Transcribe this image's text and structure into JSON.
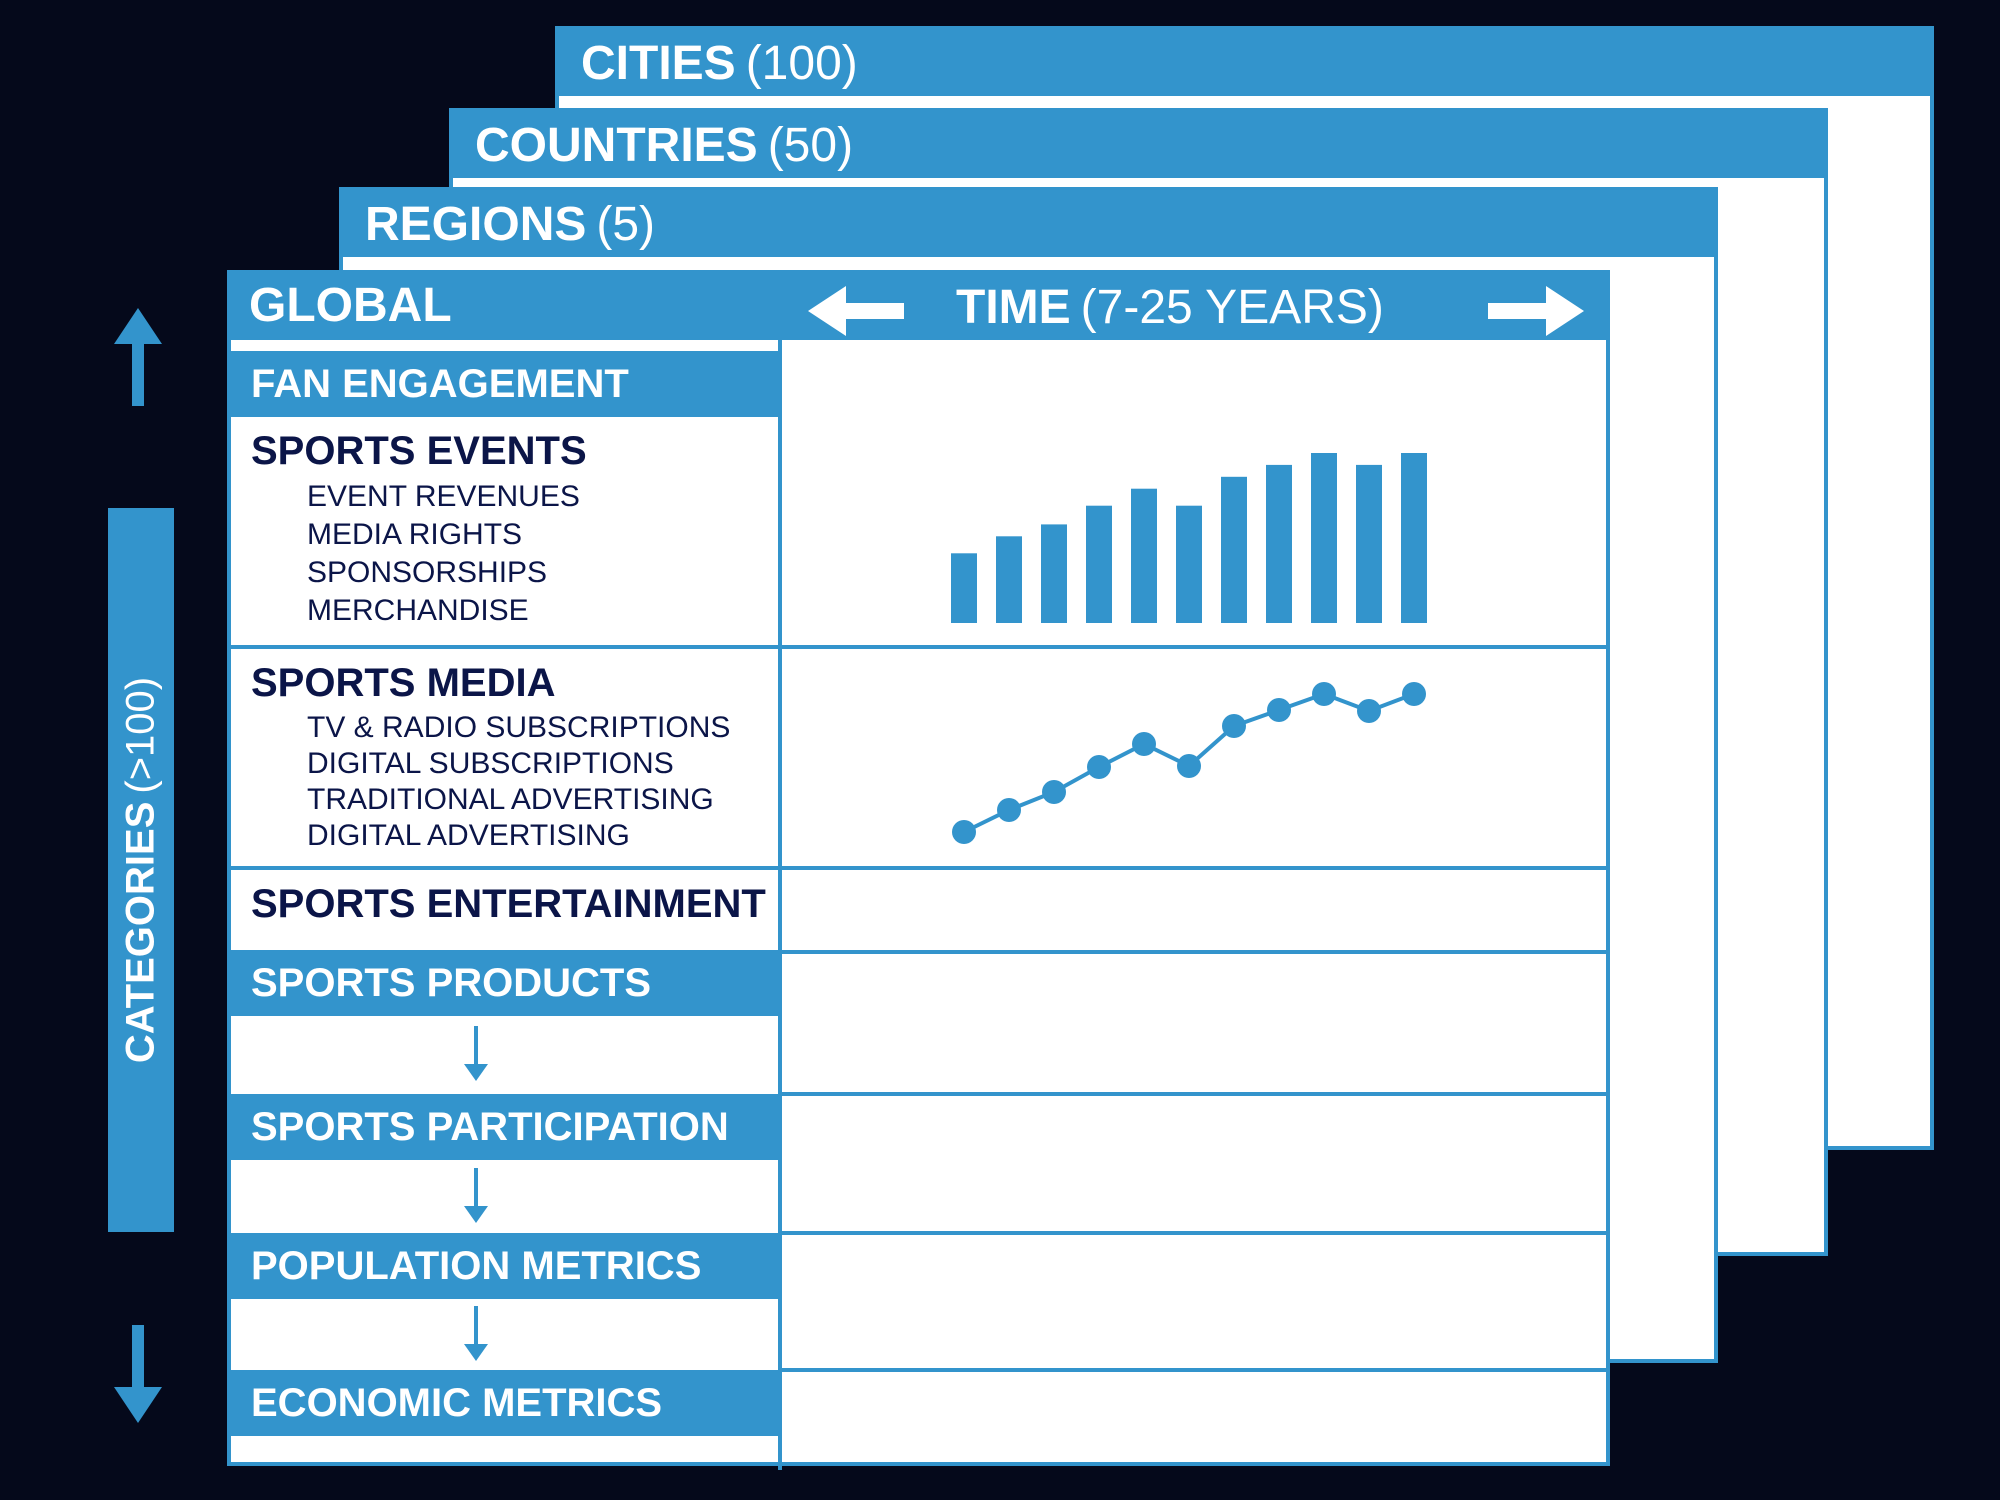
{
  "layers": [
    {
      "label": "CITIES",
      "count": "(100)"
    },
    {
      "label": "COUNTRIES",
      "count": "(50)"
    },
    {
      "label": "REGIONS",
      "count": "(5)"
    }
  ],
  "global": {
    "label": "GLOBAL",
    "time_label": "TIME",
    "time_range": "(7-25 YEARS)"
  },
  "categories_axis": {
    "label": "CATEGORIES",
    "count": "(>100)"
  },
  "rows": {
    "fan_engagement": "FAN ENGAGEMENT",
    "sports_events": {
      "title": "SPORTS EVENTS",
      "items": [
        "EVENT REVENUES",
        "MEDIA RIGHTS",
        "SPONSORSHIPS",
        "MERCHANDISE"
      ]
    },
    "sports_media": {
      "title": "SPORTS MEDIA",
      "items": [
        "TV & RADIO SUBSCRIPTIONS",
        "DIGITAL SUBSCRIPTIONS",
        "TRADITIONAL ADVERTISING",
        "DIGITAL ADVERTISING"
      ]
    },
    "sports_entertainment": "SPORTS ENTERTAINMENT",
    "sports_products": "SPORTS PRODUCTS",
    "sports_participation": "SPORTS PARTICIPATION",
    "population_metrics": "POPULATION METRICS",
    "economic_metrics": "ECONOMIC METRICS"
  },
  "colors": {
    "accent": "#3394cc",
    "text": "#0b1548",
    "background": "#05091b"
  },
  "chart_data": [
    {
      "type": "bar",
      "values": [
        4.1,
        5.1,
        5.8,
        6.9,
        7.9,
        6.9,
        8.6,
        9.3,
        10,
        9.3,
        10
      ],
      "ylim": [
        0,
        10
      ]
    },
    {
      "type": "line",
      "values": [
        4.7,
        6.9,
        8.7,
        11.2,
        13.5,
        11.3,
        15.3,
        16.9,
        18.5,
        16.8,
        18.5
      ],
      "ylim": [
        0,
        23
      ]
    }
  ]
}
